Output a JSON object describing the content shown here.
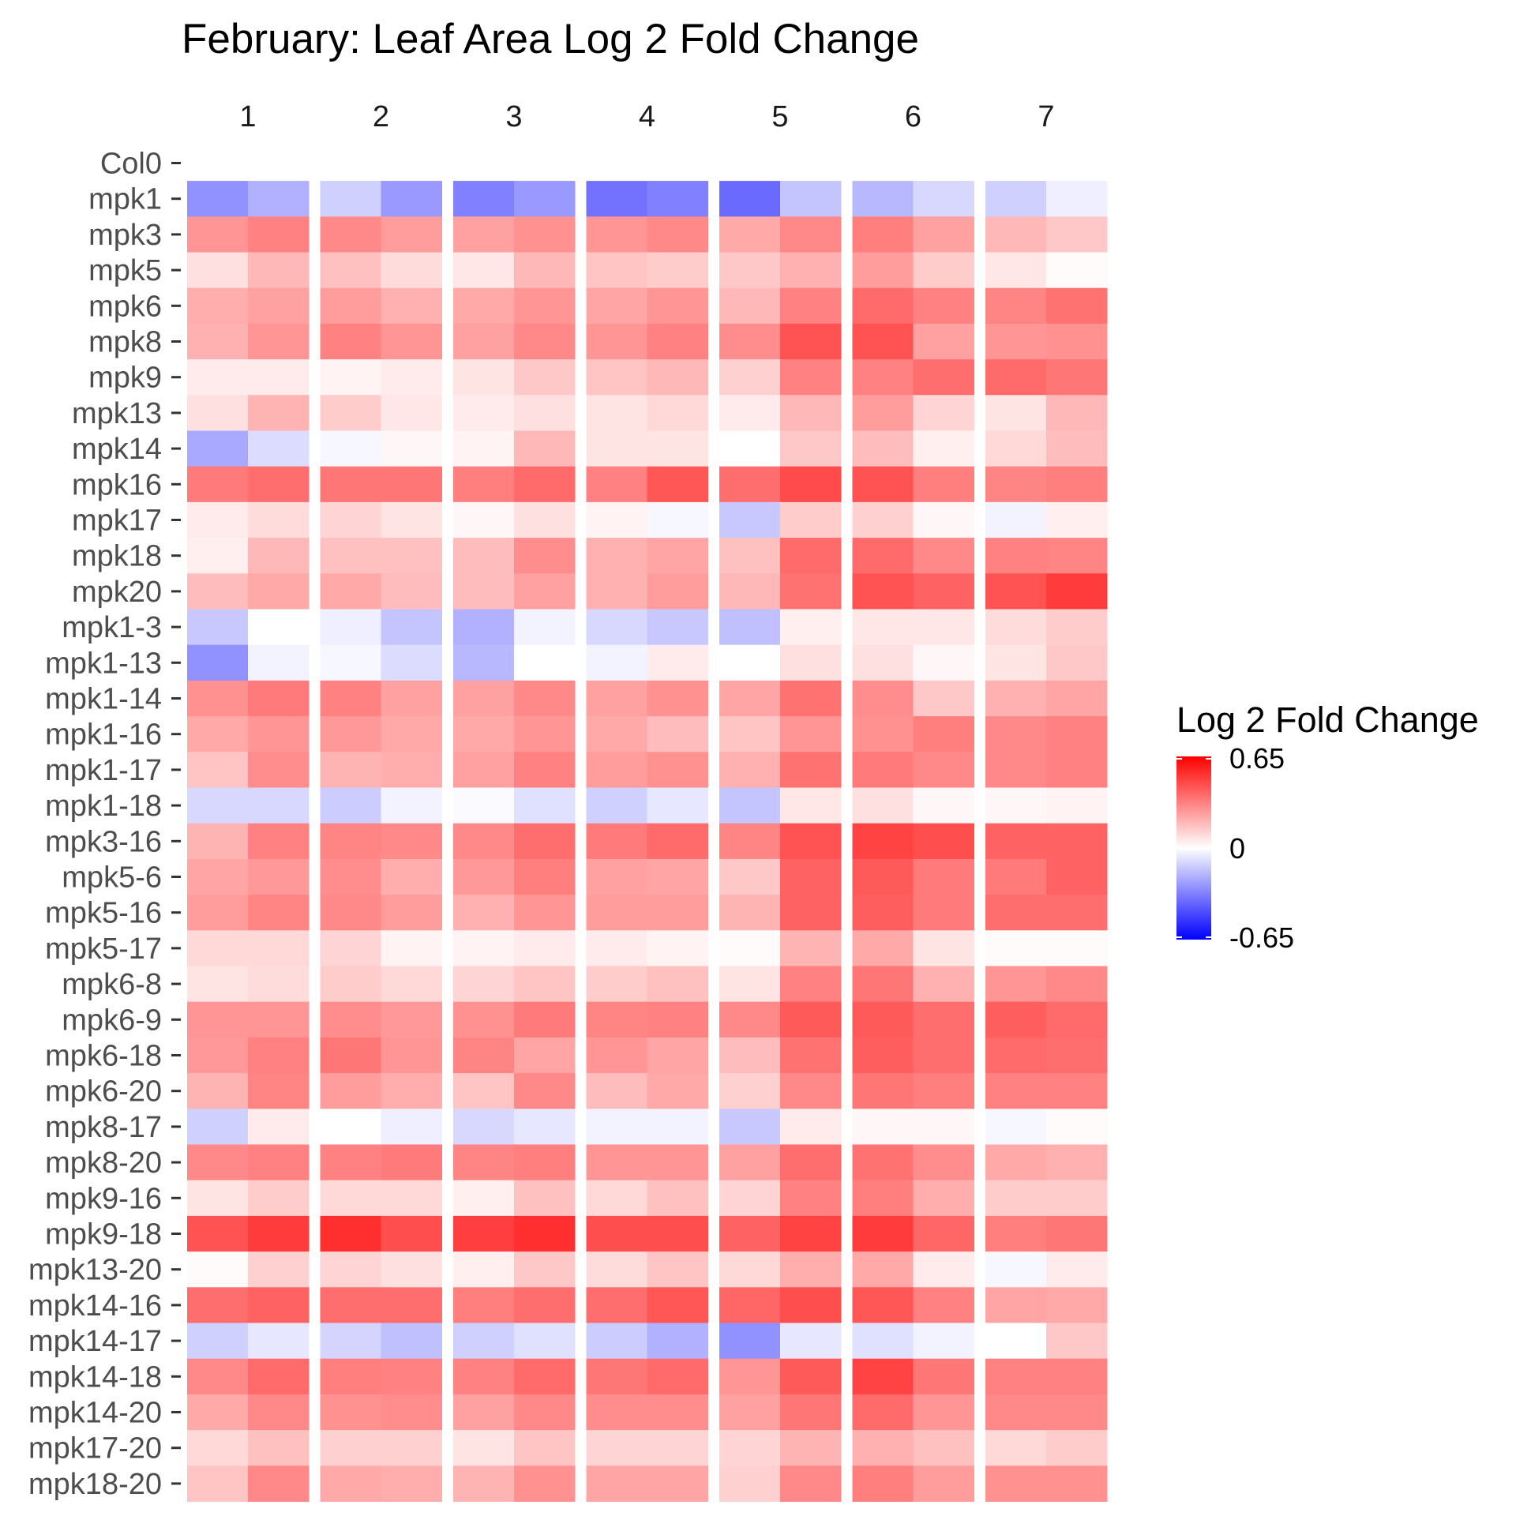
{
  "chart_data": {
    "type": "heatmap",
    "title": "February: Leaf Area Log 2 Fold Change",
    "facets": [
      "1",
      "2",
      "3",
      "4",
      "5",
      "6",
      "7"
    ],
    "sub_columns_per_facet": 2,
    "rows": [
      "Col0",
      "mpk1",
      "mpk3",
      "mpk5",
      "mpk6",
      "mpk8",
      "mpk9",
      "mpk13",
      "mpk14",
      "mpk16",
      "mpk17",
      "mpk18",
      "mpk20",
      "mpk1-3",
      "mpk1-13",
      "mpk1-14",
      "mpk1-16",
      "mpk1-17",
      "mpk1-18",
      "mpk3-16",
      "mpk5-6",
      "mpk5-16",
      "mpk5-17",
      "mpk6-8",
      "mpk6-9",
      "mpk6-18",
      "mpk6-20",
      "mpk8-17",
      "mpk8-20",
      "mpk9-16",
      "mpk9-18",
      "mpk13-20",
      "mpk14-16",
      "mpk14-17",
      "mpk14-18",
      "mpk14-20",
      "mpk17-20",
      "mpk18-20"
    ],
    "values": [
      null,
      [
        -0.28,
        -0.2,
        -0.12,
        -0.26,
        -0.32,
        -0.26,
        -0.36,
        -0.32,
        -0.38,
        -0.15,
        -0.18,
        -0.1,
        -0.12,
        -0.04
      ],
      [
        0.27,
        0.32,
        0.3,
        0.25,
        0.24,
        0.28,
        0.27,
        0.3,
        0.22,
        0.3,
        0.33,
        0.24,
        0.18,
        0.14
      ],
      [
        0.08,
        0.18,
        0.16,
        0.09,
        0.06,
        0.18,
        0.15,
        0.13,
        0.14,
        0.2,
        0.25,
        0.13,
        0.06,
        0.01
      ],
      [
        0.21,
        0.24,
        0.25,
        0.2,
        0.22,
        0.27,
        0.23,
        0.27,
        0.18,
        0.32,
        0.38,
        0.32,
        0.31,
        0.36
      ],
      [
        0.2,
        0.27,
        0.32,
        0.27,
        0.24,
        0.3,
        0.27,
        0.32,
        0.29,
        0.44,
        0.44,
        0.24,
        0.27,
        0.28
      ],
      [
        0.05,
        0.05,
        0.03,
        0.05,
        0.07,
        0.14,
        0.15,
        0.18,
        0.12,
        0.32,
        0.32,
        0.37,
        0.38,
        0.35
      ],
      [
        0.08,
        0.19,
        0.13,
        0.06,
        0.05,
        0.08,
        0.07,
        0.1,
        0.05,
        0.18,
        0.25,
        0.11,
        0.07,
        0.18
      ],
      [
        -0.22,
        -0.09,
        -0.02,
        0.02,
        0.03,
        0.18,
        0.07,
        0.07,
        0.0,
        0.14,
        0.17,
        0.04,
        0.1,
        0.17
      ],
      [
        0.34,
        0.37,
        0.35,
        0.35,
        0.33,
        0.38,
        0.32,
        0.43,
        0.37,
        0.46,
        0.44,
        0.33,
        0.31,
        0.33
      ],
      [
        0.05,
        0.09,
        0.11,
        0.07,
        0.02,
        0.08,
        0.03,
        -0.02,
        -0.14,
        0.13,
        0.12,
        0.02,
        -0.03,
        0.04
      ],
      [
        0.04,
        0.18,
        0.16,
        0.16,
        0.17,
        0.29,
        0.2,
        0.23,
        0.16,
        0.38,
        0.38,
        0.3,
        0.32,
        0.31
      ],
      [
        0.17,
        0.22,
        0.22,
        0.17,
        0.17,
        0.24,
        0.2,
        0.25,
        0.18,
        0.36,
        0.44,
        0.4,
        0.44,
        0.5
      ],
      [
        -0.14,
        0.0,
        -0.04,
        -0.15,
        -0.2,
        -0.03,
        -0.1,
        -0.14,
        -0.16,
        0.04,
        0.06,
        0.06,
        0.09,
        0.13
      ],
      [
        -0.28,
        -0.03,
        -0.02,
        -0.09,
        -0.18,
        0.0,
        -0.03,
        0.05,
        0.0,
        0.08,
        0.08,
        0.02,
        0.07,
        0.14
      ],
      [
        0.28,
        0.34,
        0.32,
        0.24,
        0.24,
        0.3,
        0.24,
        0.28,
        0.23,
        0.36,
        0.29,
        0.14,
        0.2,
        0.23
      ],
      [
        0.22,
        0.27,
        0.26,
        0.22,
        0.22,
        0.27,
        0.22,
        0.17,
        0.15,
        0.27,
        0.28,
        0.33,
        0.3,
        0.32
      ],
      [
        0.15,
        0.29,
        0.19,
        0.21,
        0.24,
        0.32,
        0.25,
        0.28,
        0.2,
        0.36,
        0.34,
        0.3,
        0.3,
        0.32
      ],
      [
        -0.1,
        -0.1,
        -0.13,
        -0.03,
        -0.01,
        -0.08,
        -0.12,
        -0.06,
        -0.15,
        0.06,
        0.08,
        0.02,
        0.02,
        0.03
      ],
      [
        0.19,
        0.32,
        0.31,
        0.3,
        0.3,
        0.37,
        0.34,
        0.38,
        0.31,
        0.44,
        0.48,
        0.45,
        0.4,
        0.4
      ],
      [
        0.23,
        0.26,
        0.29,
        0.21,
        0.26,
        0.33,
        0.24,
        0.23,
        0.14,
        0.4,
        0.42,
        0.34,
        0.34,
        0.4
      ],
      [
        0.25,
        0.31,
        0.3,
        0.25,
        0.2,
        0.27,
        0.25,
        0.25,
        0.19,
        0.4,
        0.41,
        0.34,
        0.37,
        0.37
      ],
      [
        0.1,
        0.1,
        0.11,
        0.03,
        0.03,
        0.05,
        0.05,
        0.03,
        0.01,
        0.19,
        0.22,
        0.07,
        0.01,
        0.01
      ],
      [
        0.07,
        0.09,
        0.13,
        0.1,
        0.11,
        0.15,
        0.13,
        0.16,
        0.07,
        0.32,
        0.35,
        0.2,
        0.27,
        0.3
      ],
      [
        0.27,
        0.27,
        0.29,
        0.26,
        0.28,
        0.34,
        0.31,
        0.32,
        0.3,
        0.42,
        0.42,
        0.37,
        0.41,
        0.38
      ],
      [
        0.26,
        0.32,
        0.35,
        0.27,
        0.31,
        0.23,
        0.27,
        0.23,
        0.17,
        0.36,
        0.41,
        0.37,
        0.38,
        0.37
      ],
      [
        0.19,
        0.31,
        0.25,
        0.21,
        0.15,
        0.3,
        0.17,
        0.22,
        0.12,
        0.3,
        0.35,
        0.33,
        0.32,
        0.32
      ],
      [
        -0.12,
        0.05,
        0.0,
        -0.04,
        -0.1,
        -0.06,
        -0.03,
        -0.03,
        -0.14,
        0.05,
        0.02,
        0.02,
        -0.02,
        0.01
      ],
      [
        0.3,
        0.32,
        0.32,
        0.34,
        0.31,
        0.33,
        0.27,
        0.27,
        0.24,
        0.37,
        0.36,
        0.29,
        0.22,
        0.2
      ],
      [
        0.07,
        0.13,
        0.1,
        0.1,
        0.04,
        0.16,
        0.1,
        0.16,
        0.11,
        0.32,
        0.33,
        0.21,
        0.13,
        0.13
      ],
      [
        0.44,
        0.5,
        0.53,
        0.45,
        0.49,
        0.53,
        0.45,
        0.45,
        0.4,
        0.48,
        0.5,
        0.39,
        0.33,
        0.35
      ],
      [
        0.01,
        0.12,
        0.11,
        0.08,
        0.04,
        0.14,
        0.09,
        0.15,
        0.1,
        0.21,
        0.22,
        0.05,
        -0.02,
        0.05
      ],
      [
        0.37,
        0.4,
        0.37,
        0.37,
        0.33,
        0.37,
        0.37,
        0.43,
        0.39,
        0.45,
        0.43,
        0.32,
        0.23,
        0.22
      ],
      [
        -0.12,
        -0.06,
        -0.11,
        -0.16,
        -0.12,
        -0.08,
        -0.13,
        -0.2,
        -0.28,
        -0.06,
        -0.08,
        -0.03,
        0.0,
        0.14
      ],
      [
        0.3,
        0.38,
        0.33,
        0.32,
        0.32,
        0.38,
        0.35,
        0.38,
        0.27,
        0.42,
        0.48,
        0.35,
        0.32,
        0.32
      ],
      [
        0.22,
        0.3,
        0.28,
        0.29,
        0.24,
        0.3,
        0.29,
        0.29,
        0.24,
        0.35,
        0.38,
        0.27,
        0.3,
        0.3
      ],
      [
        0.1,
        0.16,
        0.12,
        0.12,
        0.07,
        0.15,
        0.11,
        0.11,
        0.11,
        0.19,
        0.2,
        0.16,
        0.1,
        0.13
      ],
      [
        0.15,
        0.3,
        0.22,
        0.21,
        0.19,
        0.28,
        0.23,
        0.23,
        0.12,
        0.3,
        0.33,
        0.25,
        0.28,
        0.28
      ]
    ],
    "legend": {
      "title": "Log 2 Fold Change",
      "max_label": "0.65",
      "mid_label": "0",
      "min_label": "-0.65",
      "min": -0.65,
      "max": 0.65,
      "placement": "right"
    },
    "colors": {
      "low": "#0000ff",
      "mid": "#ffffff",
      "high": "#ff0000"
    }
  }
}
